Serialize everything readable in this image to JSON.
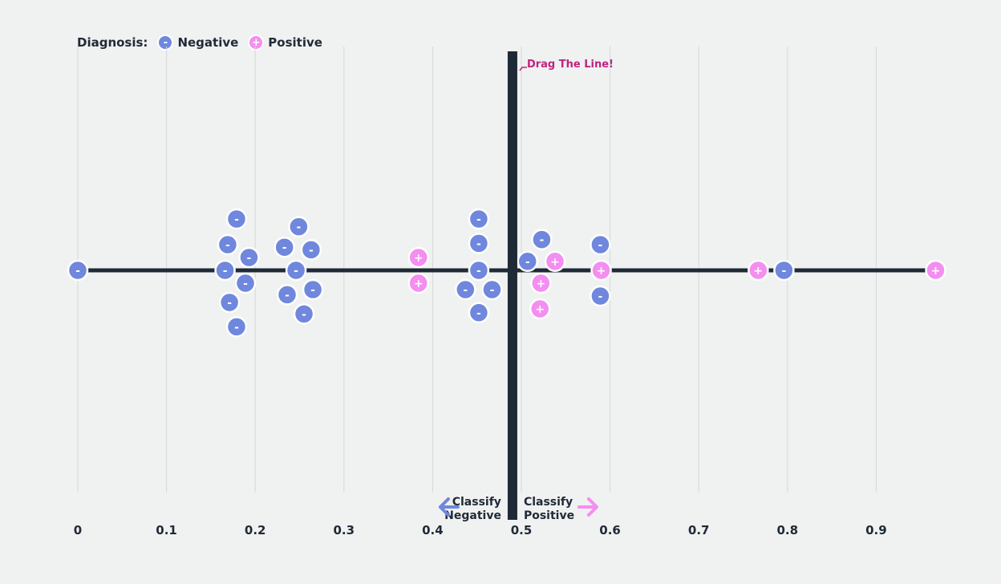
{
  "legend": {
    "title": "Diagnosis:",
    "negative_label": "Negative",
    "positive_label": "Positive",
    "negative_symbol": "-",
    "positive_symbol": "+"
  },
  "threshold": {
    "value": 0.49,
    "label": "Drag The Line!",
    "left_label": [
      "Classify",
      "Negative"
    ],
    "right_label": [
      "Classify",
      "Positive"
    ]
  },
  "colors": {
    "negative": "#6f87dd",
    "positive": "#f48ef0",
    "axis_line": "#1f2a37",
    "grid": "#d6d8da",
    "threshold": "#1f2a37",
    "drag_label": "#c0237e"
  },
  "chart_data": {
    "type": "scatter",
    "title": "",
    "xlabel": "",
    "ylabel": "",
    "xlim": [
      0,
      0.97
    ],
    "x_ticks": [
      0,
      0.1,
      0.2,
      0.3,
      0.4,
      0.5,
      0.6,
      0.7,
      0.8,
      0.9
    ],
    "x_tick_labels": [
      "0",
      "0.1",
      "0.2",
      "0.3",
      "0.4",
      "0.5",
      "0.6",
      "0.7",
      "0.8",
      "0.9"
    ],
    "grid": true,
    "legend_position": "top-left",
    "series": [
      {
        "name": "Negative",
        "x": [
          0.0,
          0.179,
          0.169,
          0.193,
          0.166,
          0.189,
          0.171,
          0.179,
          0.249,
          0.233,
          0.263,
          0.246,
          0.265,
          0.236,
          0.255,
          0.452,
          0.452,
          0.452,
          0.437,
          0.467,
          0.452,
          0.523,
          0.507,
          0.589,
          0.589,
          0.796
        ],
        "y": [
          0,
          2,
          1,
          0.5,
          0,
          -0.5,
          -1.25,
          -2.2,
          1.7,
          0.9,
          0.8,
          0,
          -0.75,
          -0.95,
          -1.7,
          2,
          1.05,
          0,
          -0.75,
          -0.75,
          -1.65,
          1.2,
          0.35,
          1.0,
          -1.0,
          0
        ]
      },
      {
        "name": "Positive",
        "x": [
          0.384,
          0.384,
          0.538,
          0.522,
          0.521,
          0.59,
          0.767,
          0.967
        ],
        "y": [
          0.5,
          -0.5,
          0.35,
          -0.5,
          -1.5,
          0,
          0,
          0
        ]
      }
    ]
  }
}
